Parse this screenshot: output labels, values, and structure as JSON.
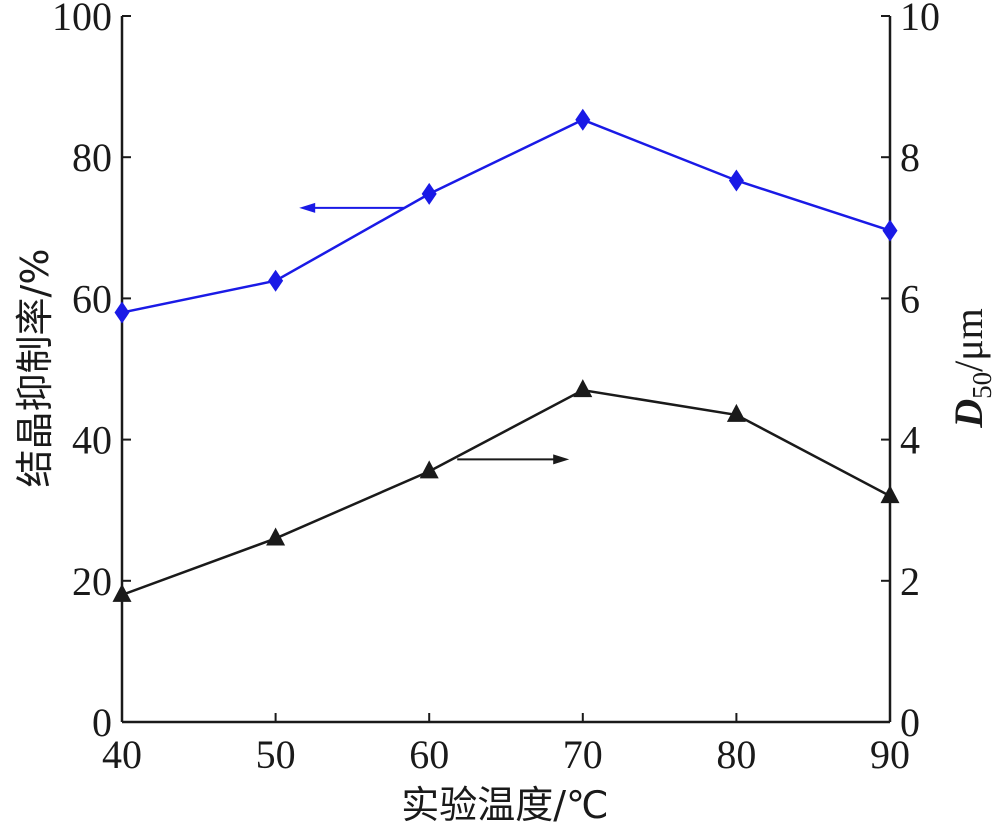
{
  "chart_data": {
    "type": "line",
    "x": [
      40,
      50,
      60,
      70,
      80,
      90
    ],
    "xlim": [
      40,
      90
    ],
    "xticks": [
      "40",
      "50",
      "60",
      "70",
      "80",
      "90"
    ],
    "xlabel": "实验温度/℃",
    "y_left": {
      "label": "结晶抑制率/%",
      "lim": [
        0,
        100
      ],
      "ticks": [
        "0",
        "20",
        "40",
        "60",
        "80",
        "100"
      ]
    },
    "y_right": {
      "label_main": "D",
      "label_sub": "50",
      "label_unit": "/μm",
      "lim": [
        0,
        10
      ],
      "ticks": [
        "0",
        "2",
        "4",
        "6",
        "8",
        "10"
      ]
    },
    "series": [
      {
        "axis": "left",
        "marker": "diamond",
        "color": "#1a1ae6",
        "values": [
          58,
          62.5,
          74.8,
          85.3,
          76.7,
          69.6
        ],
        "arrow_direction": "left"
      },
      {
        "axis": "right",
        "marker": "triangle",
        "color": "#1a1a1a",
        "values": [
          1.8,
          2.6,
          3.55,
          4.7,
          4.35,
          3.2
        ],
        "arrow_direction": "right"
      }
    ],
    "grid": false
  }
}
